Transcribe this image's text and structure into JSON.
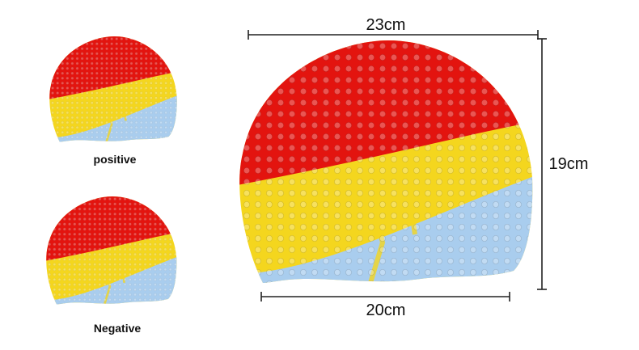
{
  "labels": {
    "width_top": "23cm",
    "height": "19cm",
    "width_bottom": "20cm",
    "positive": "positive",
    "negative": "Negative"
  }
}
